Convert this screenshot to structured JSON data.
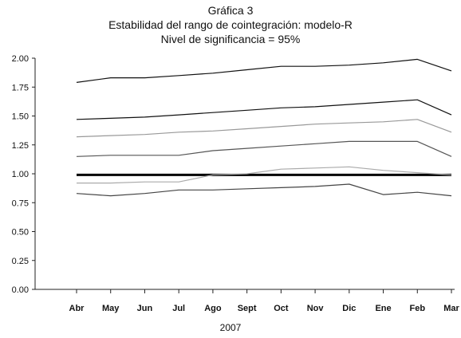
{
  "chart_data": {
    "type": "line",
    "title": "Gráfica 3",
    "subtitle": "Estabilidad del rango de cointegración: modelo-R",
    "subtitle2": "Nivel de significancia = 95%",
    "xlabel": "2007",
    "ylabel": "",
    "categories": [
      "Abr",
      "May",
      "Jun",
      "Jul",
      "Ago",
      "Sept",
      "Oct",
      "Nov",
      "Dic",
      "Ene",
      "Feb",
      "Mar"
    ],
    "ylim": [
      0,
      2.0
    ],
    "yticks": [
      "0.00",
      "0.25",
      "0.50",
      "0.75",
      "1.00",
      "1.25",
      "1.50",
      "1.75",
      "2.00"
    ],
    "grid": false,
    "legend": "none",
    "series": [
      {
        "color": "#111111",
        "width": 1.2,
        "values": [
          1.79,
          1.83,
          1.83,
          1.85,
          1.87,
          1.9,
          1.93,
          1.93,
          1.94,
          1.96,
          1.99,
          1.89
        ]
      },
      {
        "color": "#111111",
        "width": 1.2,
        "values": [
          1.47,
          1.48,
          1.49,
          1.51,
          1.53,
          1.55,
          1.57,
          1.58,
          1.6,
          1.62,
          1.64,
          1.51
        ]
      },
      {
        "color": "#999999",
        "width": 1.2,
        "values": [
          1.32,
          1.33,
          1.34,
          1.36,
          1.37,
          1.39,
          1.41,
          1.43,
          1.44,
          1.45,
          1.47,
          1.36
        ]
      },
      {
        "color": "#555555",
        "width": 1.2,
        "values": [
          1.15,
          1.16,
          1.16,
          1.16,
          1.2,
          1.22,
          1.24,
          1.26,
          1.28,
          1.28,
          1.28,
          1.15
        ]
      },
      {
        "color": "#000000",
        "width": 3,
        "values": [
          0.99,
          0.99,
          0.99,
          0.99,
          0.99,
          0.99,
          0.99,
          0.99,
          0.99,
          0.99,
          0.99,
          0.99
        ]
      },
      {
        "color": "#aaaaaa",
        "width": 1.2,
        "values": [
          0.92,
          0.92,
          0.93,
          0.93,
          0.99,
          1.0,
          1.04,
          1.05,
          1.06,
          1.03,
          1.01,
          0.99
        ]
      },
      {
        "color": "#444444",
        "width": 1.2,
        "values": [
          0.83,
          0.81,
          0.83,
          0.86,
          0.86,
          0.87,
          0.88,
          0.89,
          0.91,
          0.82,
          0.84,
          0.81
        ]
      }
    ]
  }
}
